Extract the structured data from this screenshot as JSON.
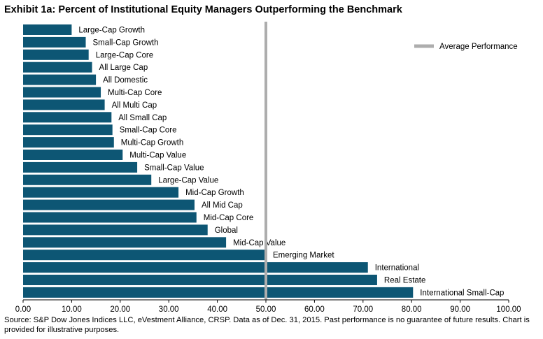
{
  "title": "Exhibit 1a: Percent of Institutional Equity Managers Outperforming the Benchmark",
  "source": "Source: S&P Dow Jones Indices LLC, eVestment Alliance, CRSP.  Data as of Dec. 31, 2015.  Past performance is no guarantee of future results.  Chart is provided for illustrative purposes.",
  "colors": {
    "bar": "#0d5674",
    "average_line": "#adadad"
  },
  "chart_data": {
    "type": "bar",
    "orientation": "horizontal",
    "title": "Exhibit 1a: Percent of Institutional Equity Managers Outperforming the Benchmark",
    "categories": [
      "Large-Cap Growth",
      "Small-Cap Growth",
      "Large-Cap Core",
      "All Large Cap",
      "All Domestic",
      "Multi-Cap Core",
      "All Multi Cap",
      "All Small Cap",
      "Small-Cap Core",
      "Multi-Cap Growth",
      "Multi-Cap Value",
      "Small-Cap Value",
      "Large-Cap Value",
      "Mid-Cap Growth",
      "All Mid Cap",
      "Mid-Cap Core",
      "Global",
      "Mid-Cap Value",
      "Emerging Market",
      "International",
      "Real Estate",
      "International Small-Cap"
    ],
    "values": [
      10.0,
      12.9,
      13.5,
      14.2,
      15.0,
      16.0,
      16.8,
      18.2,
      18.4,
      18.7,
      20.5,
      23.5,
      26.4,
      32.0,
      35.3,
      35.7,
      38.0,
      41.8,
      50.0,
      71.0,
      72.9,
      80.3
    ],
    "xlim": [
      0,
      100
    ],
    "xticks": [
      "0.00",
      "10.00",
      "20.00",
      "30.00",
      "40.00",
      "50.00",
      "60.00",
      "70.00",
      "80.00",
      "90.00",
      "100.00"
    ],
    "average_performance": 50.0,
    "legend": {
      "label": "Average Performance",
      "position": "top-right"
    },
    "grid": false
  }
}
